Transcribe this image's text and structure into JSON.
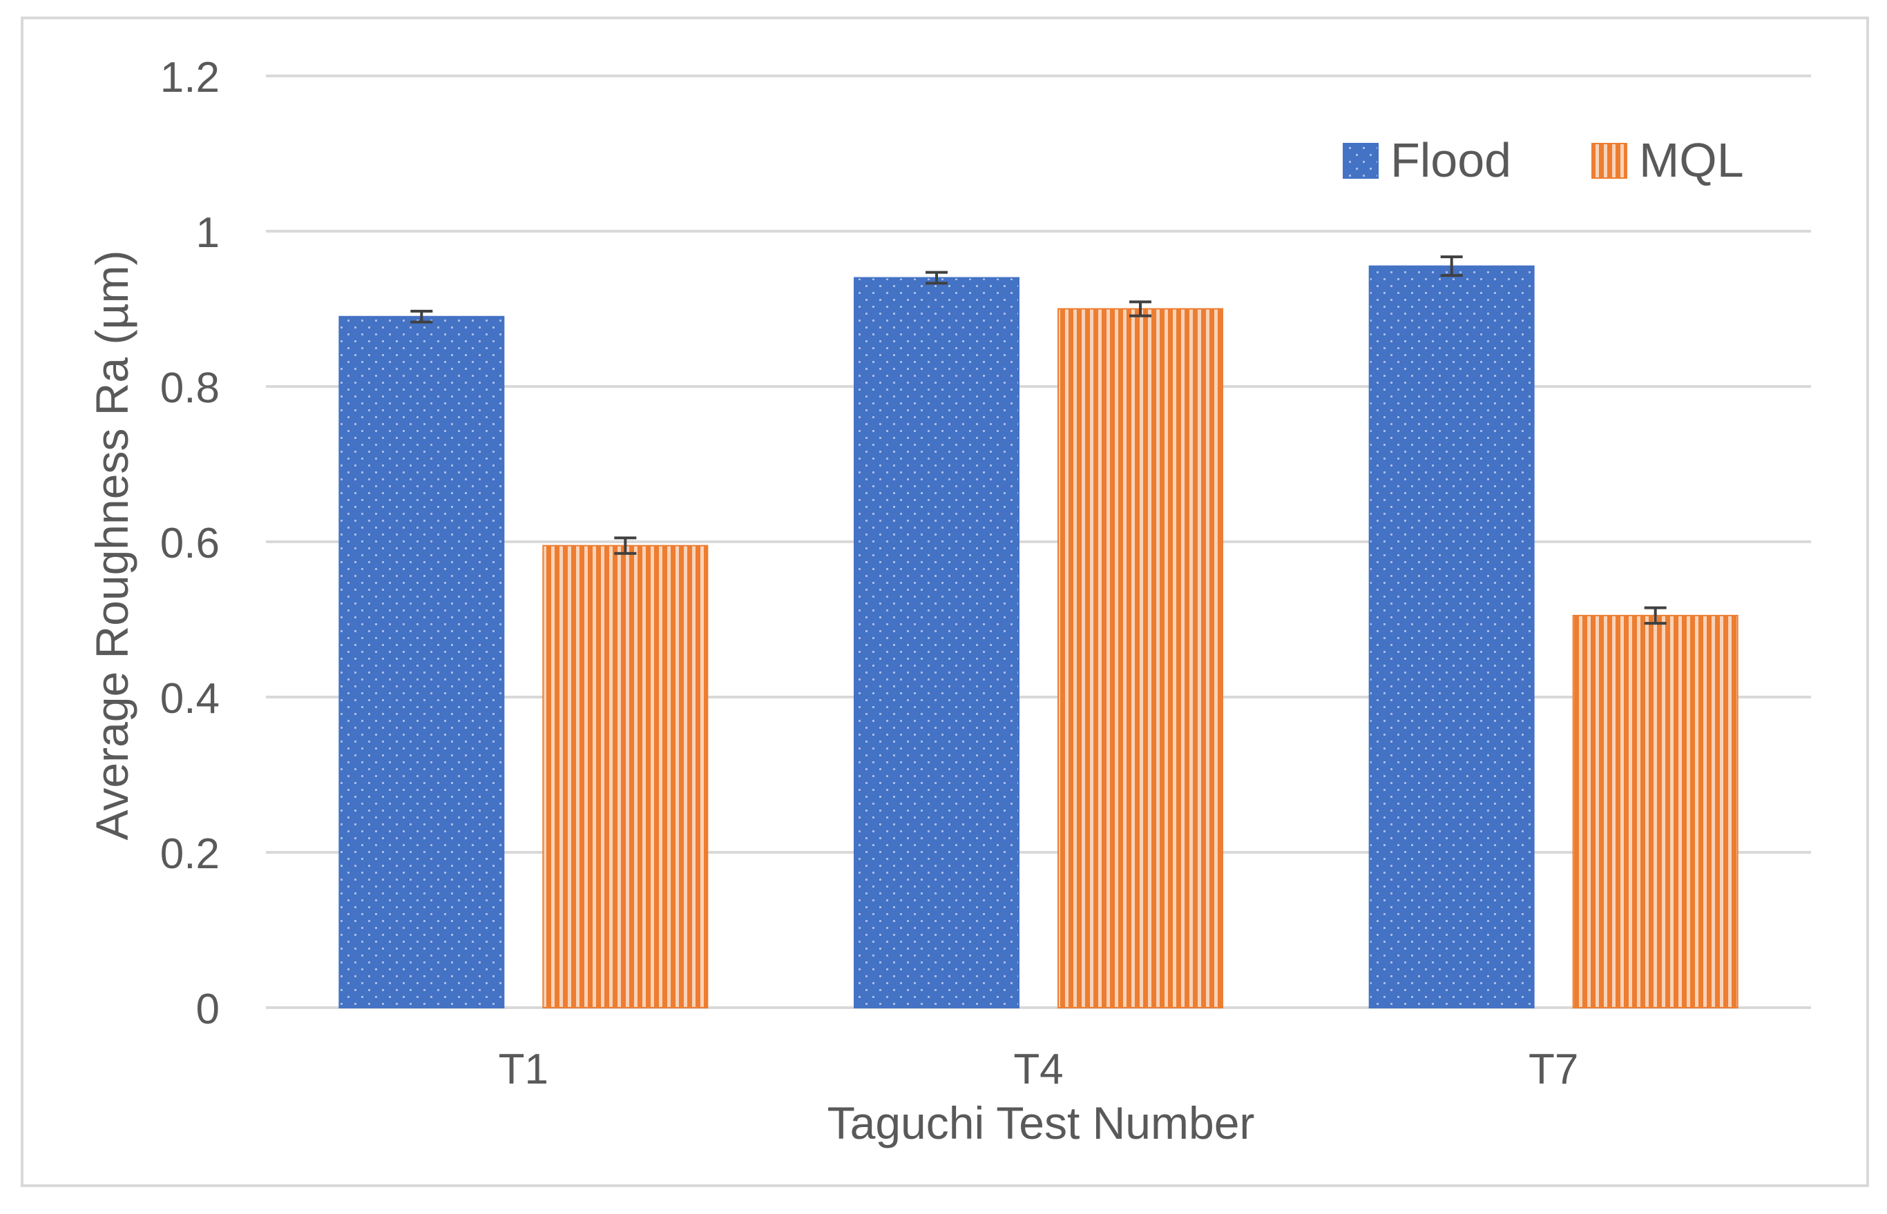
{
  "chart_data": {
    "type": "bar",
    "title": "",
    "xlabel": "Taguchi Test Number",
    "ylabel": "Average Roughness Ra (µm)",
    "categories": [
      "T1",
      "T4",
      "T7"
    ],
    "series": [
      {
        "name": "Flood",
        "values": [
          0.89,
          0.94,
          0.955
        ],
        "errors": [
          0.007,
          0.007,
          0.012
        ],
        "color": "#4472c4",
        "pattern": "dots"
      },
      {
        "name": "MQL",
        "values": [
          0.595,
          0.9,
          0.505
        ],
        "errors": [
          0.01,
          0.009,
          0.01
        ],
        "color": "#ed7d31",
        "pattern": "vertical-lines"
      }
    ],
    "ylim": [
      0,
      1.2
    ],
    "yticks": [
      "0",
      "0.2",
      "0.4",
      "0.6",
      "0.8",
      "1",
      "1.2"
    ],
    "grid": true,
    "legend_position": "top-right",
    "colors": {
      "gridline": "#d9d9d9",
      "text": "#595959",
      "error_bar": "#404040"
    }
  }
}
